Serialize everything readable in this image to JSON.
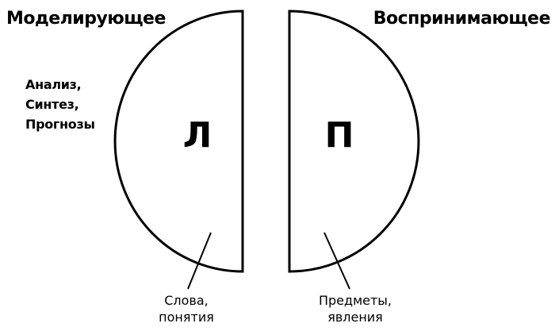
{
  "headings": {
    "left": "Моделирующее",
    "right": "Воспринимающее"
  },
  "side_notes": [
    "Анализ,",
    "Синтез,",
    "Прогнозы"
  ],
  "hemispheres": {
    "left": {
      "letter": "Л",
      "caption": [
        "Слова,",
        "понятия"
      ]
    },
    "right": {
      "letter": "П",
      "caption": [
        "Предметы,",
        "явления"
      ]
    }
  },
  "colors": {
    "stroke": "#000000",
    "background": "#ffffff"
  }
}
